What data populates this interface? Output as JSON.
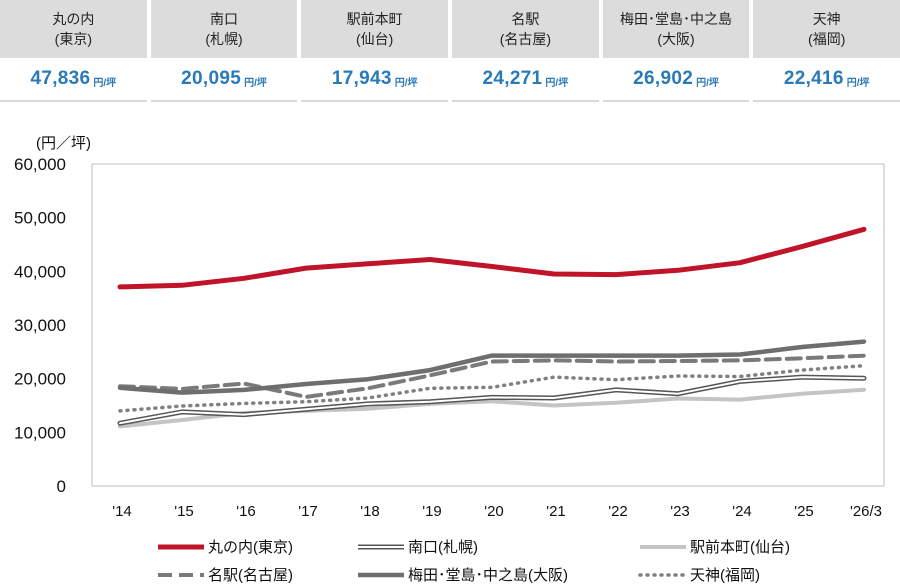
{
  "cards": [
    {
      "area": "丸の内",
      "city": "(東京)",
      "value": "47,836",
      "unit": "円/坪"
    },
    {
      "area": "南口",
      "city": "(札幌)",
      "value": "20,095",
      "unit": "円/坪"
    },
    {
      "area": "駅前本町",
      "city": "(仙台)",
      "value": "17,943",
      "unit": "円/坪"
    },
    {
      "area": "名駅",
      "city": "(名古屋)",
      "value": "24,271",
      "unit": "円/坪"
    },
    {
      "area": "梅田･堂島･中之島",
      "city": "(大阪)",
      "value": "26,902",
      "unit": "円/坪"
    },
    {
      "area": "天神",
      "city": "(福岡)",
      "value": "22,416",
      "unit": "円/坪"
    }
  ],
  "colors": {
    "marunouchi": "#c0142a",
    "nagoya": "#7a7a7a",
    "osaka": "#6e6e6e",
    "sapporo": "#555555",
    "sendai": "#c4c4c4",
    "fukuoka": "#808080",
    "card_value": "#2a7ab8"
  },
  "chart_data": {
    "type": "line",
    "ylabel": "(円／坪)",
    "ylim": [
      0,
      60000
    ],
    "yticks": [
      0,
      10000,
      20000,
      30000,
      40000,
      50000,
      60000
    ],
    "ytick_labels": [
      "0",
      "10,000",
      "20,000",
      "30,000",
      "40,000",
      "50,000",
      "60,000"
    ],
    "categories": [
      "'14",
      "'15",
      "'16",
      "'17",
      "'18",
      "'19",
      "'20",
      "'21",
      "'22",
      "'23",
      "'24",
      "'25",
      "'26/3"
    ],
    "series": [
      {
        "key": "marunouchi",
        "name": "丸の内(東京)",
        "values": [
          37100,
          37400,
          38700,
          40600,
          41400,
          42200,
          40900,
          39500,
          39400,
          40200,
          41600,
          44600,
          47836
        ]
      },
      {
        "key": "sapporo",
        "name": "南口(札幌)",
        "values": [
          11700,
          13800,
          13300,
          14300,
          15300,
          15700,
          16500,
          16400,
          17900,
          17200,
          19500,
          20300,
          20095
        ]
      },
      {
        "key": "sendai",
        "name": "駅前本町(仙台)",
        "values": [
          11100,
          12300,
          13600,
          14000,
          14400,
          15300,
          15800,
          15000,
          15500,
          16300,
          16100,
          17200,
          17943
        ]
      },
      {
        "key": "nagoya",
        "name": "名駅(名古屋)",
        "values": [
          18600,
          18100,
          19100,
          16600,
          18200,
          20600,
          23200,
          23400,
          23200,
          23300,
          23400,
          23800,
          24271
        ]
      },
      {
        "key": "osaka",
        "name": "梅田･堂島･中之島(大阪)",
        "values": [
          18300,
          17400,
          17900,
          19000,
          19900,
          21600,
          24300,
          24300,
          24300,
          24300,
          24500,
          25900,
          26902
        ]
      },
      {
        "key": "fukuoka",
        "name": "天神(福岡)",
        "values": [
          14000,
          14900,
          15400,
          15700,
          16400,
          18200,
          18400,
          20300,
          19800,
          20500,
          20400,
          21600,
          22416
        ]
      }
    ]
  }
}
